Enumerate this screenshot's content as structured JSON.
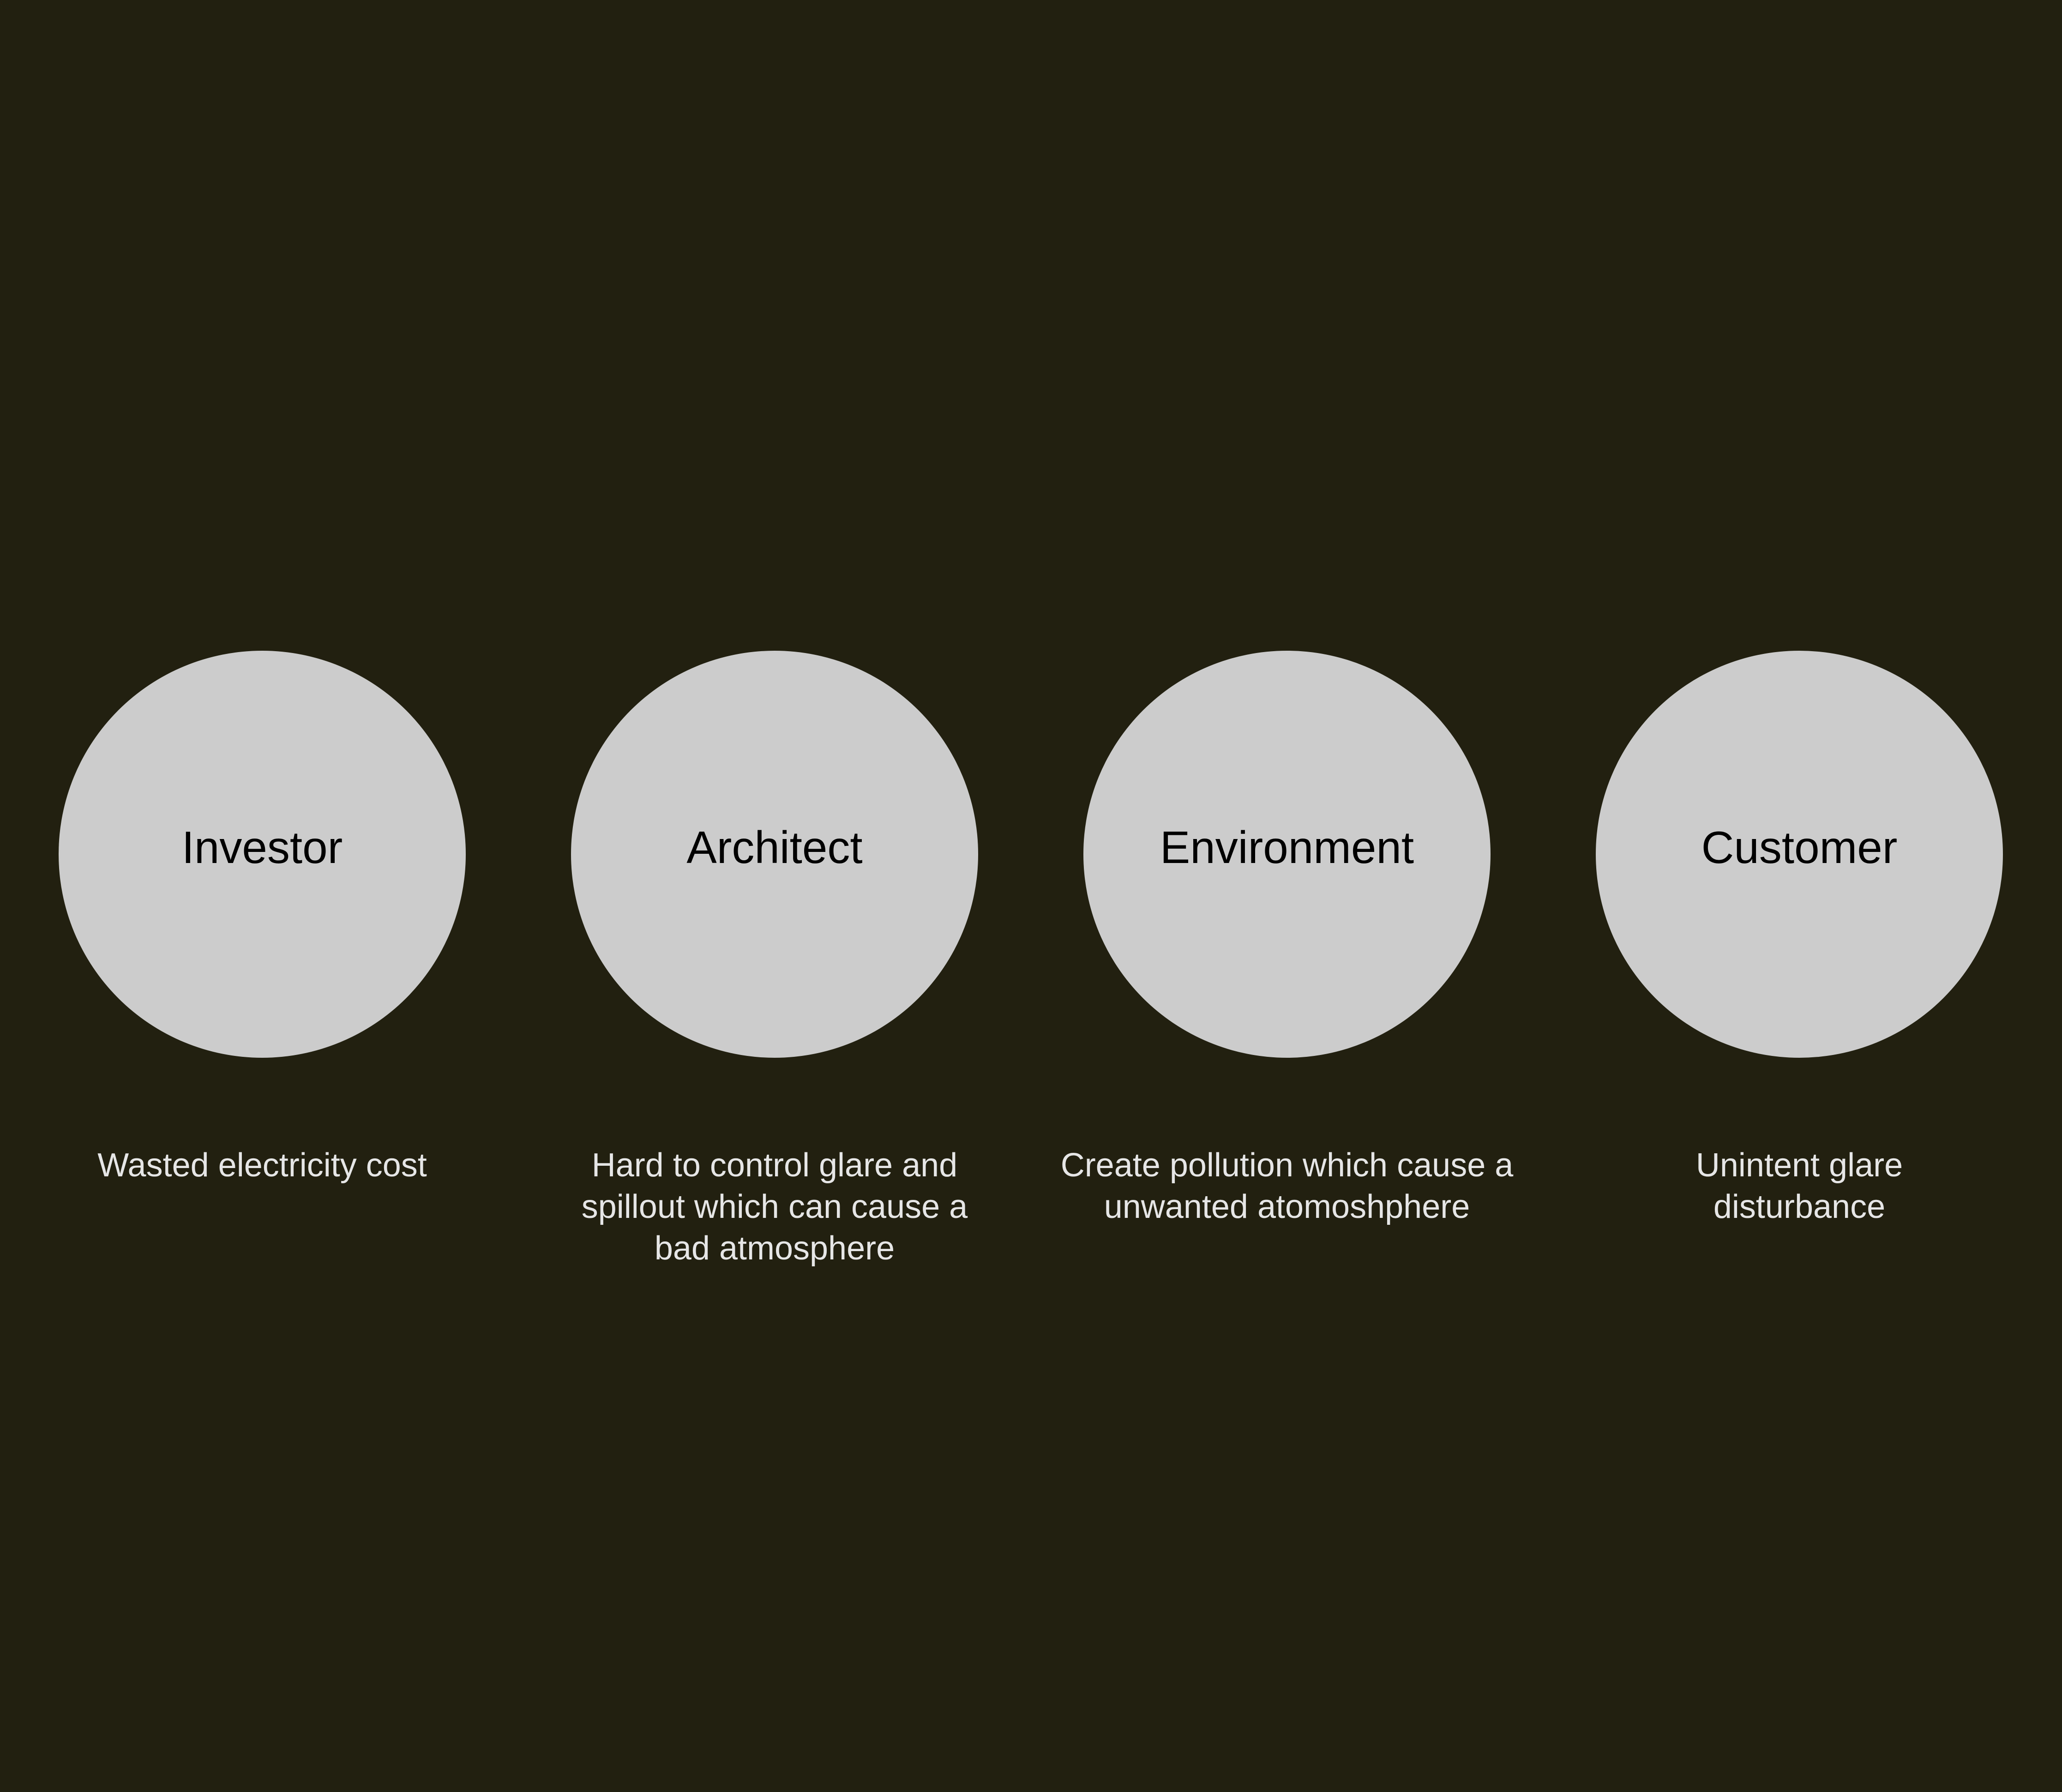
{
  "stakeholders": [
    {
      "name": "Investor",
      "issue": "Wasted electricity cost"
    },
    {
      "name": "Architect",
      "issue": "Hard to control glare and\nspillout which can cause a\nbad atmosphere"
    },
    {
      "name": "Environment",
      "issue": "Create pollution which cause a\nunwanted atomoshphere"
    },
    {
      "name": "Customer",
      "issue": "Unintent glare\ndisturbance"
    }
  ],
  "colors": {
    "background": "#222010",
    "circle": "#cccccc",
    "circle_text": "#000000",
    "caption_text": "#e6e6e6"
  }
}
